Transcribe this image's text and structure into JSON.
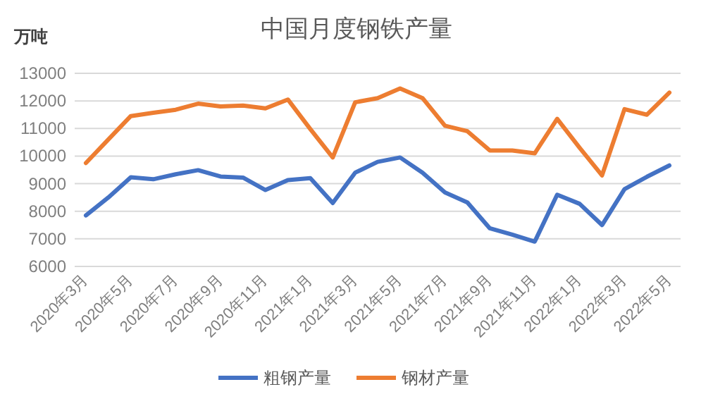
{
  "chart_data": {
    "type": "line",
    "title": "中国月度钢铁产量",
    "ylabel": "万吨",
    "categories": [
      "2020年3月",
      null,
      "2020年5月",
      null,
      "2020年7月",
      null,
      "2020年9月",
      null,
      "2020年11月",
      null,
      "2021年1月",
      null,
      "2021年3月",
      null,
      "2021年5月",
      null,
      "2021年7月",
      null,
      "2021年9月",
      null,
      "2021年11月",
      null,
      "2022年1月",
      null,
      "2022年3月",
      null,
      "2022年5月"
    ],
    "series": [
      {
        "name": "粗钢产量",
        "color": "#4472c4",
        "values": [
          7850,
          8500,
          9230,
          9160,
          9340,
          9490,
          9260,
          9220,
          8770,
          9130,
          9200,
          8300,
          9400,
          9790,
          9950,
          9400,
          8680,
          8320,
          7380,
          7150,
          6900,
          8600,
          8270,
          7500,
          8800,
          9250,
          9660
        ]
      },
      {
        "name": "钢材产量",
        "color": "#ed7d31",
        "values": [
          9750,
          10600,
          11450,
          11570,
          11680,
          11900,
          11800,
          11830,
          11730,
          12050,
          10980,
          9950,
          11950,
          12100,
          12450,
          12100,
          11100,
          10900,
          10200,
          10200,
          10100,
          11350,
          10300,
          9300,
          11700,
          11500,
          12300
        ]
      }
    ],
    "ylim": [
      6000,
      13000
    ],
    "yticks": [
      6000,
      7000,
      8000,
      9000,
      10000,
      11000,
      12000,
      13000
    ],
    "grid": "y",
    "legend": "bottom",
    "marker": "none",
    "line_style": "solid"
  }
}
